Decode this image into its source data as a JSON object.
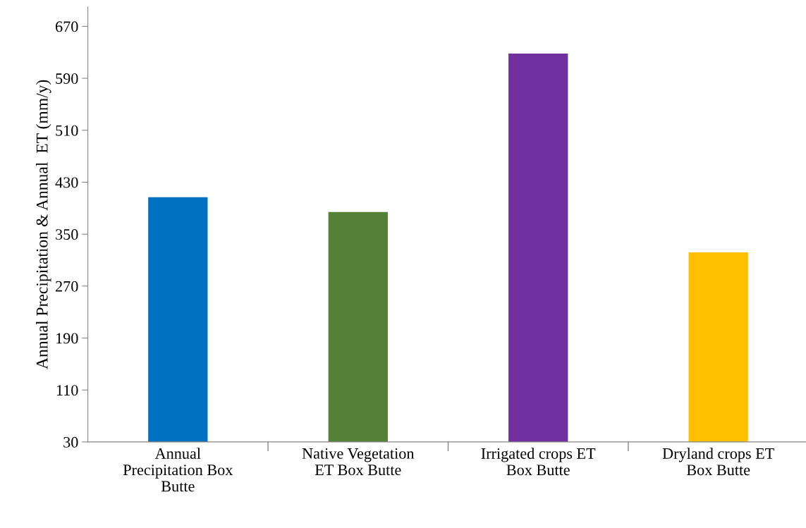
{
  "chart_data": {
    "type": "bar",
    "ylabel": "Annual Precipitation & Annual  ET (mm/y)",
    "categories": [
      "Annual Precipitation Box Butte",
      "Native Vegetation ET Box Butte",
      "Irrigated crops ET Box Butte",
      "Dryland crops ET Box Butte"
    ],
    "values": [
      407,
      384,
      628,
      322
    ],
    "colors": [
      "#0070c0",
      "#538135",
      "#7030a0",
      "#ffc000"
    ],
    "ylim": [
      30,
      700
    ],
    "yticks": [
      30,
      110,
      190,
      270,
      350,
      430,
      510,
      590,
      670
    ],
    "grid": false,
    "legend": false
  }
}
